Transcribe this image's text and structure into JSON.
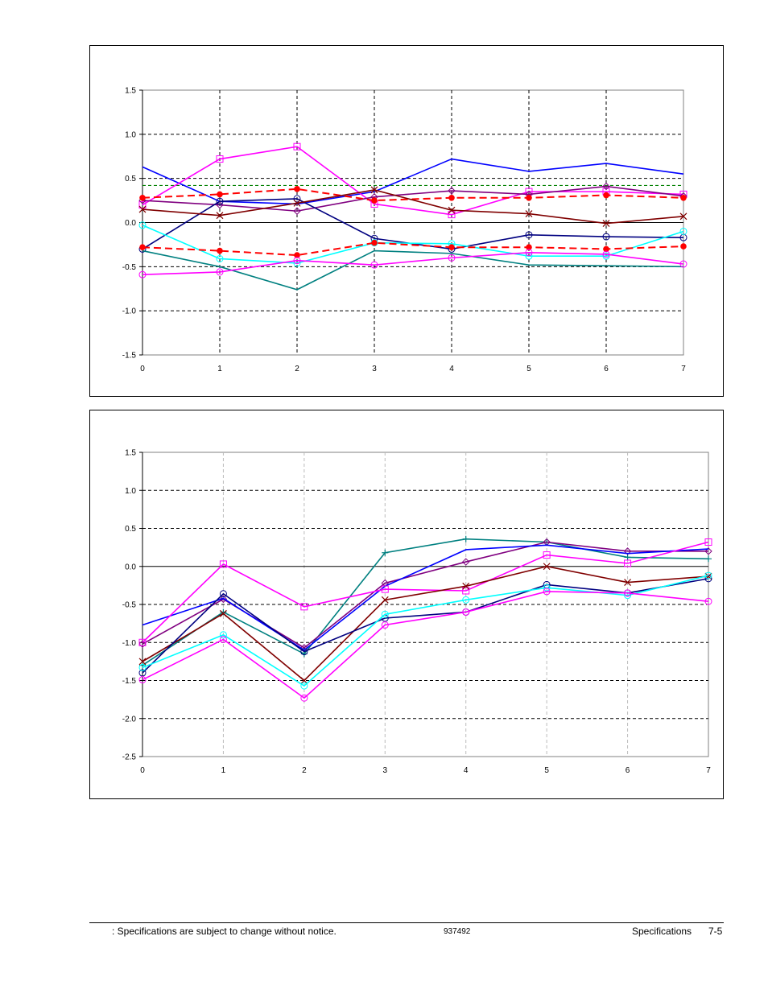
{
  "footer": {
    "notice": ": Specifications are subject to change without notice.",
    "doc_number": "937492",
    "section": "Specifications",
    "page": "7-5"
  },
  "chart_data": [
    {
      "type": "line",
      "title": "",
      "xlabel": "",
      "ylabel": "",
      "xlim": [
        0,
        7
      ],
      "ylim": [
        -1.5,
        1.5
      ],
      "x_ticks": [
        0,
        1,
        2,
        3,
        4,
        5,
        6,
        7
      ],
      "y_ticks": [
        -1.5,
        -1.0,
        -0.5,
        0.0,
        0.5,
        1.0,
        1.5
      ],
      "y_tick_labels": [
        "-1.5",
        "-1.0",
        "-0.5",
        "0.0",
        "0.5",
        "1.0",
        "1.5"
      ],
      "x_tick_labels": [
        "0",
        "1",
        "2",
        "3",
        "4",
        "5",
        "6",
        "7"
      ],
      "grid": "dashed vertical at each x; dashed horizontal at ±0.5 and ±1.0",
      "reference_lines": [
        {
          "y": 0.42,
          "color": "#008000",
          "style": "dashed"
        }
      ],
      "x": [
        0,
        1,
        2,
        3,
        4,
        5,
        6,
        7
      ],
      "series": [
        {
          "name": "blue",
          "color": "#0000ff",
          "marker": "none",
          "dash": false,
          "values": [
            0.63,
            0.24,
            0.21,
            0.35,
            0.72,
            0.58,
            0.67,
            0.55
          ]
        },
        {
          "name": "magenta-square",
          "color": "#ff00ff",
          "marker": "square",
          "dash": false,
          "values": [
            0.2,
            0.72,
            0.86,
            0.21,
            0.09,
            0.35,
            0.35,
            0.32
          ]
        },
        {
          "name": "purple-diamond",
          "color": "#800080",
          "marker": "diamond",
          "dash": false,
          "values": [
            0.25,
            0.2,
            0.13,
            0.29,
            0.36,
            0.32,
            0.41,
            0.3
          ]
        },
        {
          "name": "red-dashed-upper",
          "color": "#ff0000",
          "marker": "dot",
          "dash": true,
          "values": [
            0.28,
            0.32,
            0.38,
            0.25,
            0.28,
            0.28,
            0.31,
            0.28
          ]
        },
        {
          "name": "navy-circle",
          "color": "#000080",
          "marker": "circle",
          "dash": false,
          "values": [
            -0.3,
            0.24,
            0.27,
            -0.18,
            -0.3,
            -0.14,
            -0.16,
            -0.17
          ]
        },
        {
          "name": "darkred-x",
          "color": "#800000",
          "marker": "x",
          "dash": false,
          "values": [
            0.15,
            0.08,
            0.22,
            0.37,
            0.14,
            0.1,
            -0.01,
            0.07
          ]
        },
        {
          "name": "cyan-circle",
          "color": "#00ffff",
          "marker": "circle",
          "dash": false,
          "values": [
            -0.03,
            -0.41,
            -0.46,
            -0.23,
            -0.24,
            -0.38,
            -0.38,
            -0.1
          ]
        },
        {
          "name": "red-dashed-lower",
          "color": "#ff0000",
          "marker": "dot",
          "dash": true,
          "values": [
            -0.28,
            -0.32,
            -0.37,
            -0.23,
            -0.28,
            -0.28,
            -0.3,
            -0.27
          ]
        },
        {
          "name": "teal",
          "color": "#008080",
          "marker": "none",
          "dash": false,
          "values": [
            -0.32,
            -0.5,
            -0.76,
            -0.32,
            -0.35,
            -0.48,
            -0.49,
            -0.5
          ]
        },
        {
          "name": "magenta-circle",
          "color": "#ff00ff",
          "marker": "circle",
          "dash": false,
          "values": [
            -0.59,
            -0.56,
            -0.43,
            -0.48,
            -0.4,
            -0.34,
            -0.36,
            -0.47
          ]
        }
      ]
    },
    {
      "type": "line",
      "title": "",
      "xlabel": "",
      "ylabel": "",
      "xlim": [
        0,
        7
      ],
      "ylim": [
        -2.5,
        1.5
      ],
      "x_ticks": [
        0,
        1,
        2,
        3,
        4,
        5,
        6,
        7
      ],
      "y_ticks": [
        -2.5,
        -2.0,
        -1.5,
        -1.0,
        -0.5,
        0.0,
        0.5,
        1.0,
        1.5
      ],
      "y_tick_labels": [
        "-2.5",
        "-2.0",
        "-1.5",
        "-1.0",
        "-0.5",
        "0.0",
        "0.5",
        "1.0",
        "1.5"
      ],
      "x_tick_labels": [
        "0",
        "1",
        "2",
        "3",
        "4",
        "5",
        "6",
        "7"
      ],
      "grid": "faint dashed vertical at each x; dashed horizontal at ±0.5, ±1.0, -1.5, -2.0",
      "x": [
        0,
        1,
        2,
        3,
        4,
        5,
        6,
        7
      ],
      "series": [
        {
          "name": "teal-plus",
          "color": "#008080",
          "marker": "plus",
          "dash": false,
          "values": [
            -1.3,
            -0.6,
            -1.15,
            0.18,
            0.36,
            0.32,
            0.12,
            0.1
          ]
        },
        {
          "name": "purple-diamond",
          "color": "#800080",
          "marker": "diamond",
          "dash": false,
          "values": [
            -1.02,
            -0.43,
            -1.07,
            -0.22,
            0.06,
            0.32,
            0.2,
            0.2
          ]
        },
        {
          "name": "blue",
          "color": "#0000ff",
          "marker": "none",
          "dash": false,
          "values": [
            -0.77,
            -0.42,
            -1.1,
            -0.26,
            0.22,
            0.28,
            0.17,
            0.23
          ]
        },
        {
          "name": "magenta-square",
          "color": "#ff00ff",
          "marker": "square",
          "dash": false,
          "values": [
            -1.0,
            0.03,
            -0.53,
            -0.3,
            -0.32,
            0.15,
            0.04,
            0.32
          ]
        },
        {
          "name": "darkred-x",
          "color": "#800000",
          "marker": "x",
          "dash": false,
          "values": [
            -1.25,
            -0.62,
            -1.5,
            -0.44,
            -0.26,
            0.0,
            -0.21,
            -0.13
          ]
        },
        {
          "name": "navy-circle",
          "color": "#000080",
          "marker": "circle",
          "dash": false,
          "values": [
            -1.4,
            -0.36,
            -1.12,
            -0.68,
            -0.6,
            -0.24,
            -0.35,
            -0.16
          ]
        },
        {
          "name": "cyan-circle",
          "color": "#00ffff",
          "marker": "circle",
          "dash": false,
          "values": [
            -1.33,
            -0.9,
            -1.57,
            -0.63,
            -0.44,
            -0.28,
            -0.38,
            -0.12
          ]
        },
        {
          "name": "magenta-circle",
          "color": "#ff00ff",
          "marker": "circle",
          "dash": false,
          "values": [
            -1.49,
            -0.96,
            -1.73,
            -0.77,
            -0.6,
            -0.33,
            -0.35,
            -0.46
          ]
        }
      ]
    }
  ]
}
